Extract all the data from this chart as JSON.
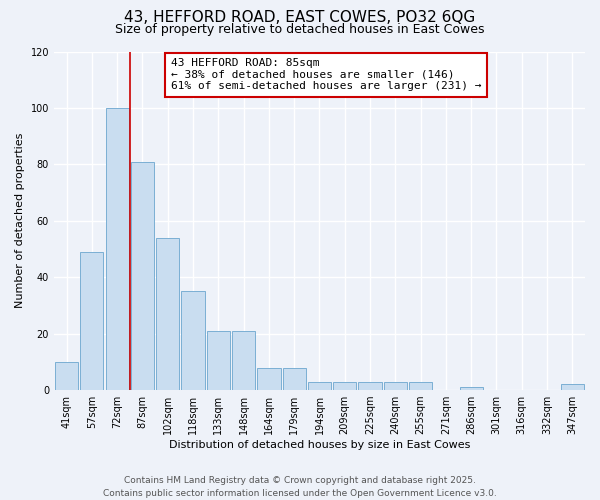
{
  "title": "43, HEFFORD ROAD, EAST COWES, PO32 6QG",
  "subtitle": "Size of property relative to detached houses in East Cowes",
  "xlabel": "Distribution of detached houses by size in East Cowes",
  "ylabel": "Number of detached properties",
  "bin_labels": [
    "41sqm",
    "57sqm",
    "72sqm",
    "87sqm",
    "102sqm",
    "118sqm",
    "133sqm",
    "148sqm",
    "164sqm",
    "179sqm",
    "194sqm",
    "209sqm",
    "225sqm",
    "240sqm",
    "255sqm",
    "271sqm",
    "286sqm",
    "301sqm",
    "316sqm",
    "332sqm",
    "347sqm"
  ],
  "bar_heights": [
    10,
    49,
    100,
    81,
    54,
    35,
    21,
    21,
    8,
    8,
    3,
    3,
    3,
    3,
    3,
    0,
    1,
    0,
    0,
    0,
    2
  ],
  "bar_color": "#c9ddf0",
  "bar_edge_color": "#7aafd4",
  "ylim": [
    0,
    120
  ],
  "yticks": [
    0,
    20,
    40,
    60,
    80,
    100,
    120
  ],
  "vline_x_idx": 2.5,
  "vline_color": "#cc0000",
  "annotation_text_line1": "43 HEFFORD ROAD: 85sqm",
  "annotation_text_line2": "← 38% of detached houses are smaller (146)",
  "annotation_text_line3": "61% of semi-detached houses are larger (231) →",
  "footer_line1": "Contains HM Land Registry data © Crown copyright and database right 2025.",
  "footer_line2": "Contains public sector information licensed under the Open Government Licence v3.0.",
  "background_color": "#eef2f9",
  "grid_color": "#ffffff",
  "title_fontsize": 11,
  "subtitle_fontsize": 9,
  "axis_label_fontsize": 8,
  "tick_fontsize": 7,
  "annotation_fontsize": 8,
  "footer_fontsize": 6.5
}
